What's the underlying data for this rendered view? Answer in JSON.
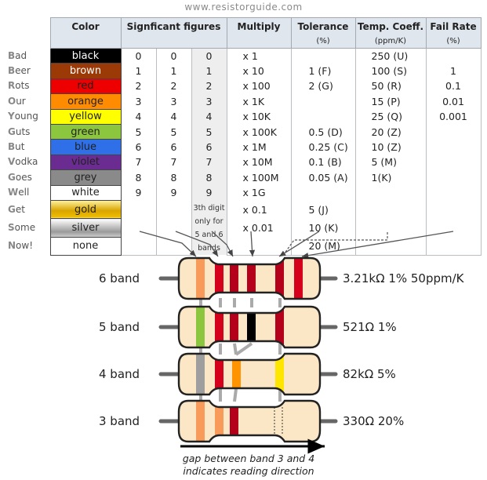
{
  "site": "www.resistorguide.com",
  "headers": {
    "color": "Color",
    "sig": "Signficant figures",
    "mult": "Multiply",
    "tol": "Tolerance",
    "tol_unit": "(%)",
    "temp": "Temp. Coeff.",
    "temp_unit": "(ppm/K)",
    "fail": "Fail Rate",
    "fail_unit": "(%)"
  },
  "rows": [
    {
      "first": "B",
      "rest": "ad",
      "color": "black",
      "bg": "#000000",
      "fg": "#ffffff",
      "d1": "0",
      "d2": "0",
      "d3": "0",
      "mult": "x 1",
      "tol": "",
      "temp": "250 (U)",
      "fail": ""
    },
    {
      "first": "B",
      "rest": "eer",
      "color": "brown",
      "bg": "#9b3a06",
      "fg": "#ffffff",
      "d1": "1",
      "d2": "1",
      "d3": "1",
      "mult": "x 10",
      "tol": "1 (F)",
      "temp": "100 (S)",
      "fail": "1"
    },
    {
      "first": "R",
      "rest": "ots",
      "color": "red",
      "bg": "#ee0000",
      "fg": "#222222",
      "d1": "2",
      "d2": "2",
      "d3": "2",
      "mult": "x 100",
      "tol": "2 (G)",
      "temp": "50 (R)",
      "fail": "0.1"
    },
    {
      "first": "O",
      "rest": "ur",
      "color": "orange",
      "bg": "#ff8c00",
      "fg": "#222222",
      "d1": "3",
      "d2": "3",
      "d3": "3",
      "mult": "x 1K",
      "tol": "",
      "temp": "15 (P)",
      "fail": "0.01"
    },
    {
      "first": "Y",
      "rest": "oung",
      "color": "yellow",
      "bg": "#ffff00",
      "fg": "#222222",
      "d1": "4",
      "d2": "4",
      "d3": "4",
      "mult": "x 10K",
      "tol": "",
      "temp": "25 (Q)",
      "fail": "0.001"
    },
    {
      "first": "G",
      "rest": "uts",
      "color": "green",
      "bg": "#8cc63f",
      "fg": "#222222",
      "d1": "5",
      "d2": "5",
      "d3": "5",
      "mult": "x 100K",
      "tol": "0.5 (D)",
      "temp": "20 (Z)",
      "fail": ""
    },
    {
      "first": "B",
      "rest": "ut",
      "color": "blue",
      "bg": "#2f6fe8",
      "fg": "#222222",
      "d1": "6",
      "d2": "6",
      "d3": "6",
      "mult": "x 1M",
      "tol": "0.25 (C)",
      "temp": "10 (Z)",
      "fail": ""
    },
    {
      "first": "V",
      "rest": "odka",
      "color": "violet",
      "bg": "#6a2c91",
      "fg": "#222222",
      "d1": "7",
      "d2": "7",
      "d3": "7",
      "mult": "x 10M",
      "tol": "0.1 (B)",
      "temp": "5 (M)",
      "fail": ""
    },
    {
      "first": "G",
      "rest": "oes",
      "color": "grey",
      "bg": "#8a8a8a",
      "fg": "#222222",
      "d1": "8",
      "d2": "8",
      "d3": "8",
      "mult": "x 100M",
      "tol": "0.05 (A)",
      "temp": "1(K)",
      "fail": ""
    },
    {
      "first": "W",
      "rest": "ell",
      "color": "white",
      "bg": "#ffffff",
      "fg": "#222222",
      "d1": "9",
      "d2": "9",
      "d3": "9",
      "mult": "x 1G",
      "tol": "",
      "temp": "",
      "fail": ""
    },
    {
      "first": "G",
      "rest": "et",
      "color": "gold",
      "bg": "#e0b000",
      "fg": "#222222",
      "d1": "",
      "d2": "",
      "d3": "",
      "mult": "x 0.1",
      "tol": "5 (J)",
      "temp": "",
      "fail": ""
    },
    {
      "first": "S",
      "rest": "ome",
      "color": "silver",
      "bg": "#c8c8c8",
      "fg": "#222222",
      "d1": "",
      "d2": "",
      "d3": "",
      "mult": "x 0.01",
      "tol": "10 (K)",
      "temp": "",
      "fail": ""
    },
    {
      "first": "N",
      "rest": "ow!",
      "color": "none",
      "bg": "#ffffff",
      "fg": "#222222",
      "d1": "",
      "d2": "",
      "d3": "",
      "mult": "",
      "tol": "20 (M)",
      "temp": "",
      "fail": ""
    }
  ],
  "note": "3th digit only for 5 and 6 bands",
  "resistors": [
    {
      "label": "6 band",
      "value": "3.21kΩ 1% 50ppm/K"
    },
    {
      "label": "5 band",
      "value": "521Ω 1%"
    },
    {
      "label": "4 band",
      "value": "82kΩ 5%"
    },
    {
      "label": "3 band",
      "value": "330Ω 20%"
    }
  ],
  "caption": {
    "line1": "gap between band 3 and 4",
    "line2": "indicates reading direction"
  },
  "colors": {
    "body": "#fbe7c6",
    "orange": "#f79a5a",
    "red": "#d5001c",
    "darkred": "#b4001a",
    "green": "#8cc63f",
    "black": "#000000",
    "grey": "#9e9e9e",
    "amber": "#ff9300",
    "yellow": "#ffe600"
  }
}
